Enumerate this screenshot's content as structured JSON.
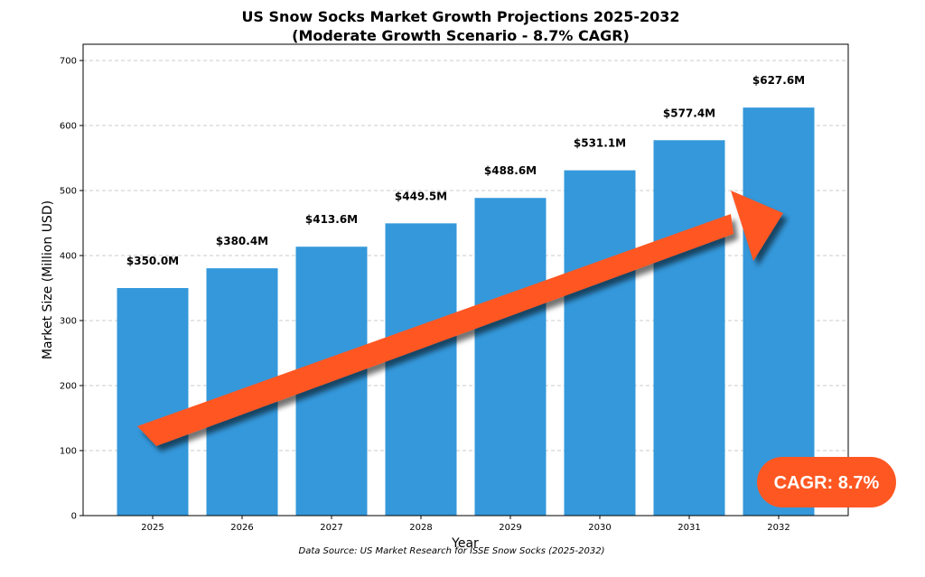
{
  "chart_data": {
    "type": "bar",
    "title": "US Snow Socks Market Growth Projections 2025-2032",
    "subtitle": "(Moderate Growth Scenario - 8.7% CAGR)",
    "xlabel": "Year",
    "ylabel": "Market Size (Million USD)",
    "categories": [
      "2025",
      "2026",
      "2027",
      "2028",
      "2029",
      "2030",
      "2031",
      "2032"
    ],
    "values": [
      350.0,
      380.4,
      413.6,
      449.5,
      488.6,
      531.1,
      577.4,
      627.6
    ],
    "value_labels": [
      "$350.0M",
      "$380.4M",
      "$413.6M",
      "$449.5M",
      "$488.6M",
      "$531.1M",
      "$577.4M",
      "$627.6M"
    ],
    "ylim": [
      0,
      700
    ],
    "yticks": [
      0,
      100,
      200,
      300,
      400,
      500,
      600,
      700
    ],
    "grid": "y-dashed",
    "bar_color": "#3498db",
    "annotation": {
      "text": "CAGR: 8.7%",
      "color": "#ff5722",
      "arrow_color": "#ff5722"
    },
    "source": "Data Source: US Market Research for ISSE Snow Socks (2025-2032)"
  }
}
